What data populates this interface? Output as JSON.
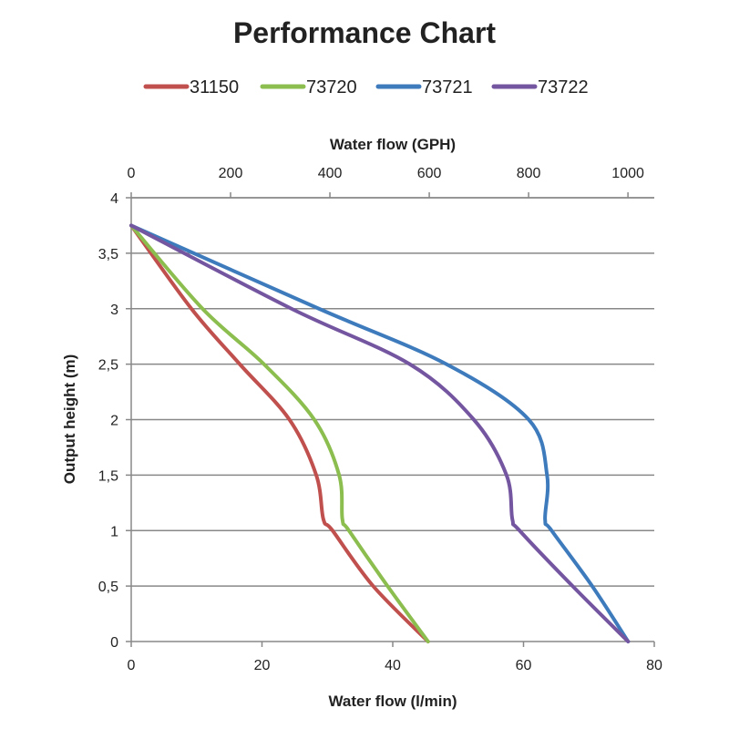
{
  "chart_data": {
    "type": "line",
    "title": "Performance Chart",
    "xlabel": "Water flow (l/min)",
    "x2label": "Water flow (GPH)",
    "ylabel": "Output height (m)",
    "xlim": [
      0,
      80
    ],
    "x2lim": [
      0,
      1053
    ],
    "ylim": [
      0,
      4
    ],
    "xticks": [
      "0",
      "20",
      "40",
      "60",
      "80"
    ],
    "xtick_values": [
      0,
      20,
      40,
      60,
      80
    ],
    "x2ticks": [
      "0",
      "200",
      "400",
      "600",
      "800",
      "1000"
    ],
    "x2tick_values": [
      0,
      200,
      400,
      600,
      800,
      1000
    ],
    "yticks": [
      "0",
      "0,5",
      "1",
      "1,5",
      "2",
      "2,5",
      "3",
      "3,5",
      "4"
    ],
    "ytick_values": [
      0,
      0.5,
      1,
      1.5,
      2,
      2.5,
      3,
      3.5,
      4
    ],
    "grid": "horizontal",
    "legend": "top",
    "series": [
      {
        "name": "31150",
        "color": "#c0504d",
        "x": [
          45.4,
          37,
          30.8,
          29.4,
          28.3,
          24.2,
          16.6,
          9.2,
          0
        ],
        "y": [
          0,
          0.5,
          1,
          1.1,
          1.5,
          2,
          2.5,
          3,
          3.75
        ]
      },
      {
        "name": "73720",
        "color": "#8cbd4f",
        "x": [
          45.4,
          39.2,
          33.3,
          32.3,
          31.8,
          28,
          20.3,
          10.9,
          0
        ],
        "y": [
          0,
          0.5,
          1,
          1.1,
          1.5,
          2,
          2.5,
          3,
          3.75
        ]
      },
      {
        "name": "73721",
        "color": "#3e7bbd",
        "x": [
          76,
          70.5,
          64.3,
          63.3,
          63.6,
          60.8,
          48.2,
          28.7,
          0
        ],
        "y": [
          0,
          0.5,
          1,
          1.1,
          1.5,
          2,
          2.5,
          3,
          3.75
        ]
      },
      {
        "name": "73722",
        "color": "#7455a0",
        "x": [
          76,
          67.5,
          59.4,
          58.3,
          57.4,
          52.4,
          42.6,
          24.5,
          0
        ],
        "y": [
          0,
          0.5,
          1,
          1.1,
          1.5,
          2,
          2.5,
          3,
          3.75
        ]
      }
    ]
  }
}
